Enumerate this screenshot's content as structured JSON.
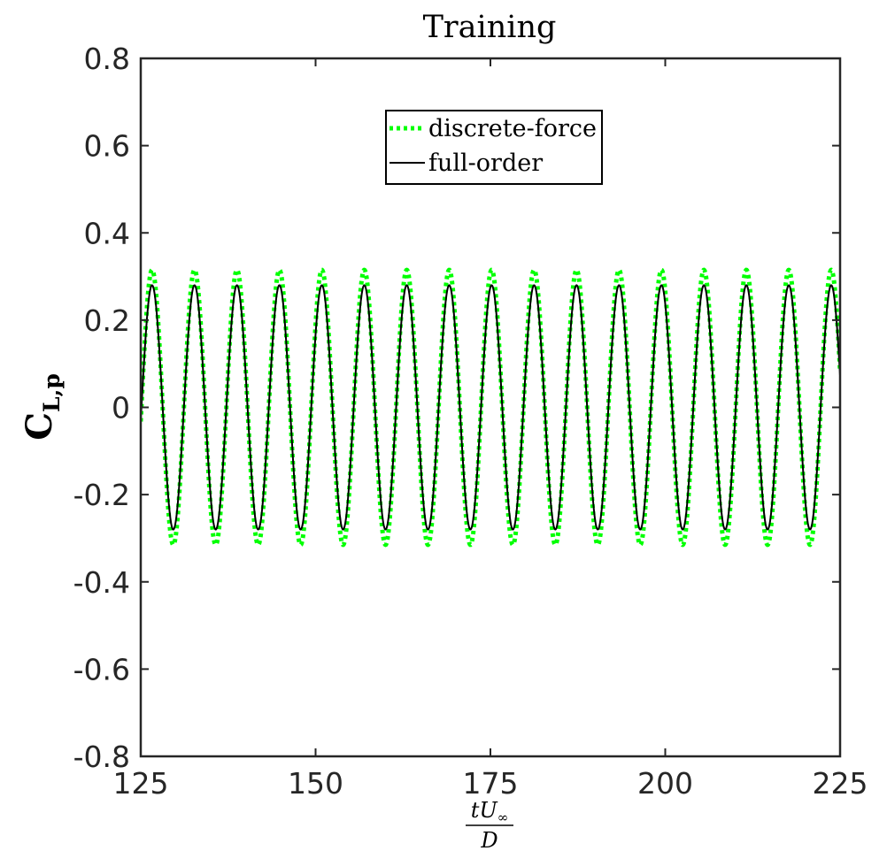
{
  "chart_data": {
    "type": "line",
    "title": "Training",
    "ylabel": {
      "main": "C",
      "sub": "L,p"
    },
    "xlabel": {
      "num_t": "t",
      "num_U": "U",
      "num_sub": "∞",
      "den": "D"
    },
    "xlim": [
      125,
      225
    ],
    "ylim": [
      -0.8,
      0.8
    ],
    "xticks": [
      125,
      150,
      175,
      200,
      225
    ],
    "xtick_labels": [
      "125",
      "150",
      "175",
      "200",
      "225"
    ],
    "yticks": [
      -0.8,
      -0.6,
      -0.4,
      -0.2,
      0,
      0.2,
      0.4,
      0.6,
      0.8
    ],
    "ytick_labels": [
      "-0.8",
      "-0.6",
      "-0.4",
      "-0.2",
      "0",
      "0.2",
      "0.4",
      "0.6",
      "0.8"
    ],
    "grid": false,
    "legend_position": "top-center",
    "series": [
      {
        "name": "discrete-force",
        "color": "#00ff00",
        "style": "dotted",
        "amplitude": 0.315,
        "period": 6.07,
        "phase_x": 125.1,
        "x_start": 125,
        "x_end": 225
      },
      {
        "name": "full-order",
        "color": "#000000",
        "style": "solid",
        "amplitude": 0.28,
        "period": 6.07,
        "phase_x": 125.1,
        "x_start": 125,
        "x_end": 225
      }
    ]
  }
}
